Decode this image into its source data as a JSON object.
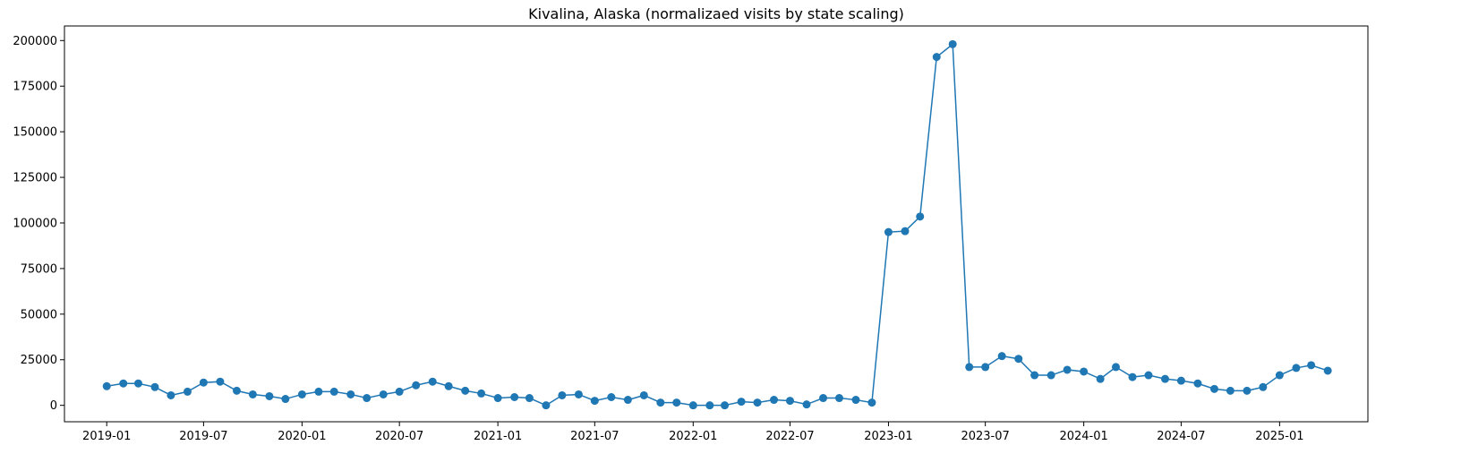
{
  "chart_data": {
    "type": "line",
    "title": "Kivalina, Alaska (normalizaed visits by state scaling)",
    "xlabel": "",
    "ylabel": "",
    "x_tick_labels": [
      "2019-01",
      "2019-07",
      "2020-01",
      "2020-07",
      "2021-01",
      "2021-07",
      "2022-01",
      "2022-07",
      "2023-01",
      "2023-07",
      "2024-01",
      "2024-07",
      "2025-01"
    ],
    "y_tick_labels": [
      "0",
      "25000",
      "50000",
      "75000",
      "100000",
      "125000",
      "150000",
      "175000",
      "200000"
    ],
    "y_ticks": [
      0,
      25000,
      50000,
      75000,
      100000,
      125000,
      150000,
      175000,
      200000
    ],
    "xlim": [
      "2018-10-14",
      "2025-06-15"
    ],
    "ylim": [
      -9000,
      208000
    ],
    "grid": false,
    "color": "#1f77b4",
    "series": [
      {
        "x": [
          "2019-01-01",
          "2019-02-01",
          "2019-03-01",
          "2019-04-01",
          "2019-05-01",
          "2019-06-01",
          "2019-07-01",
          "2019-08-01",
          "2019-09-01",
          "2019-10-01",
          "2019-11-01",
          "2019-12-01",
          "2020-01-01",
          "2020-02-01",
          "2020-03-01",
          "2020-04-01",
          "2020-05-01",
          "2020-06-01",
          "2020-07-01",
          "2020-08-01",
          "2020-09-01",
          "2020-10-01",
          "2020-11-01",
          "2020-12-01",
          "2021-01-01",
          "2021-02-01",
          "2021-03-01",
          "2021-04-01",
          "2021-05-01",
          "2021-06-01",
          "2021-07-01",
          "2021-08-01",
          "2021-09-01",
          "2021-10-01",
          "2021-11-01",
          "2021-12-01",
          "2022-01-01",
          "2022-02-01",
          "2022-03-01",
          "2022-04-01",
          "2022-05-01",
          "2022-06-01",
          "2022-07-01",
          "2022-08-01",
          "2022-09-01",
          "2022-10-01",
          "2022-11-01",
          "2022-12-01",
          "2023-01-01",
          "2023-02-01",
          "2023-03-01",
          "2023-04-01",
          "2023-05-01",
          "2023-06-01",
          "2023-07-01",
          "2023-08-01",
          "2023-09-01",
          "2023-10-01",
          "2023-11-01",
          "2023-12-01",
          "2024-01-01",
          "2024-02-01",
          "2024-03-01",
          "2024-04-01",
          "2024-05-01",
          "2024-06-01",
          "2024-07-01",
          "2024-08-01",
          "2024-09-01",
          "2024-10-01",
          "2024-11-01",
          "2024-12-01",
          "2025-01-01",
          "2025-02-01",
          "2025-03-01",
          "2025-04-01"
        ],
        "y": [
          10500,
          12000,
          12000,
          10000,
          5500,
          7500,
          12500,
          13000,
          8000,
          6000,
          5000,
          3500,
          6000,
          7500,
          7500,
          6000,
          4000,
          6000,
          7500,
          11000,
          13000,
          10500,
          8000,
          6500,
          4000,
          4500,
          4000,
          0,
          5500,
          6000,
          2500,
          4500,
          3000,
          5500,
          1500,
          1500,
          0,
          0,
          0,
          2000,
          1500,
          3000,
          2500,
          500,
          4000,
          4000,
          3000,
          1500,
          95000,
          95500,
          103500,
          191000,
          198000,
          21000,
          21000,
          27000,
          25500,
          16500,
          16500,
          19500,
          18500,
          14500,
          21000,
          15500,
          16500,
          14500,
          13500,
          12000,
          9000,
          8000,
          8000,
          10000,
          16500,
          20500,
          22000,
          19000
        ]
      }
    ]
  }
}
